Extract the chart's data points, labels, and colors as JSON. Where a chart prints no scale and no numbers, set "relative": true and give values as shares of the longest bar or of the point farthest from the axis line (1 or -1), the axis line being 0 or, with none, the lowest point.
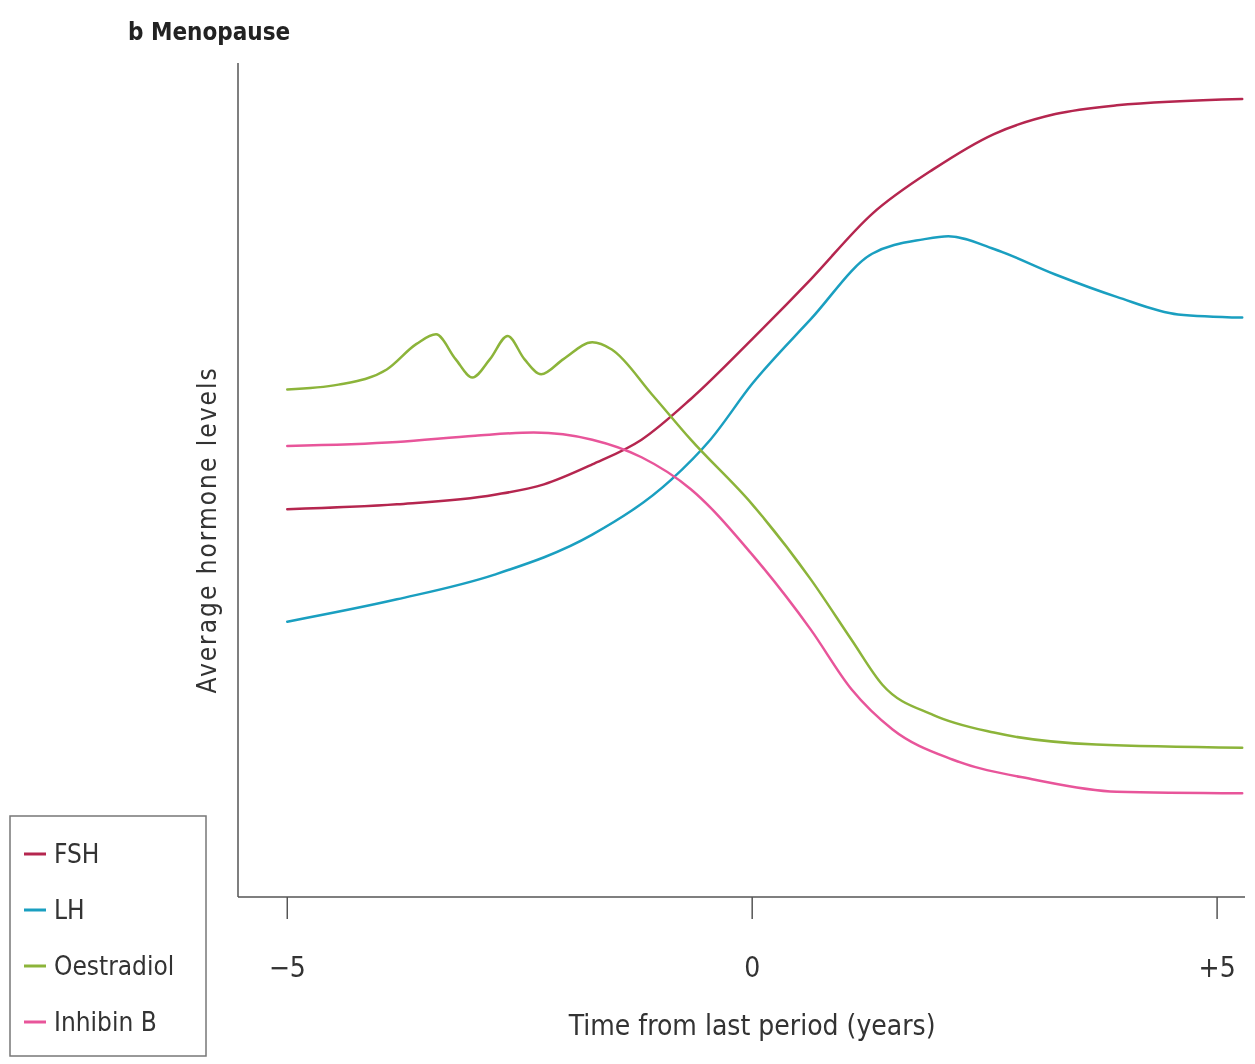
{
  "chart_data": {
    "type": "line",
    "title": "b Menopause",
    "xlabel": "Time from last period (years)",
    "ylabel": "Average hormone levels",
    "relative": true,
    "xlim": [
      -5.53,
      5.3
    ],
    "xticks": [
      {
        "value": -5,
        "label": "−5"
      },
      0,
      {
        "value": 5,
        "label": "+5"
      }
    ],
    "grid": false,
    "legend": "bottom left",
    "marker": "none",
    "line_style": "solid",
    "series": [
      {
        "name": "FSH",
        "color": "#b5264f",
        "x": [
          -5,
          -3.82,
          -2.77,
          -2.24,
          -1.72,
          -1.19,
          -0.66,
          0,
          0.63,
          1.29,
          1.95,
          2.6,
          3.26,
          3.92,
          5.27
        ],
        "values": [
          0.486,
          0.492,
          0.504,
          0.517,
          0.542,
          0.573,
          0.624,
          0.699,
          0.774,
          0.856,
          0.912,
          0.956,
          0.981,
          0.992,
          1
        ]
      },
      {
        "name": "LH",
        "color": "#1a9fc0",
        "x": [
          -5,
          -3.82,
          -2.77,
          -1.72,
          -0.87,
          -0.45,
          0,
          0.63,
          1.29,
          1.84,
          2.11,
          2.6,
          3.26,
          3.92,
          4.58,
          5.27
        ],
        "values": [
          0.345,
          0.373,
          0.404,
          0.454,
          0.523,
          0.573,
          0.643,
          0.724,
          0.806,
          0.824,
          0.828,
          0.812,
          0.78,
          0.752,
          0.73,
          0.726
        ]
      },
      {
        "name": "Oestradiol",
        "color": "#8cb43a",
        "x": [
          -5,
          -4.45,
          -3.93,
          -3.61,
          -3.4,
          -3.19,
          -3.01,
          -2.82,
          -2.63,
          -2.45,
          -2.27,
          -2.03,
          -1.72,
          -1.51,
          -1.08,
          -0.66,
          0,
          0.63,
          1.07,
          1.4,
          1.95,
          2.6,
          3.7,
          5.27
        ],
        "values": [
          0.636,
          0.642,
          0.661,
          0.693,
          0.705,
          0.674,
          0.651,
          0.674,
          0.703,
          0.674,
          0.655,
          0.674,
          0.695,
          0.686,
          0.63,
          0.573,
          0.492,
          0.398,
          0.322,
          0.266,
          0.228,
          0.206,
          0.191,
          0.187
        ]
      },
      {
        "name": "Inhibin B",
        "color": "#e8559a",
        "x": [
          -5,
          -3.82,
          -2.98,
          -2.35,
          -1.72,
          -1.19,
          -0.66,
          0,
          0.63,
          1.07,
          1.51,
          2.16,
          3.04,
          3.92,
          5.27
        ],
        "values": [
          0.565,
          0.57,
          0.578,
          0.582,
          0.573,
          0.551,
          0.511,
          0.429,
          0.335,
          0.26,
          0.21,
          0.172,
          0.147,
          0.132,
          0.13
        ]
      }
    ]
  }
}
